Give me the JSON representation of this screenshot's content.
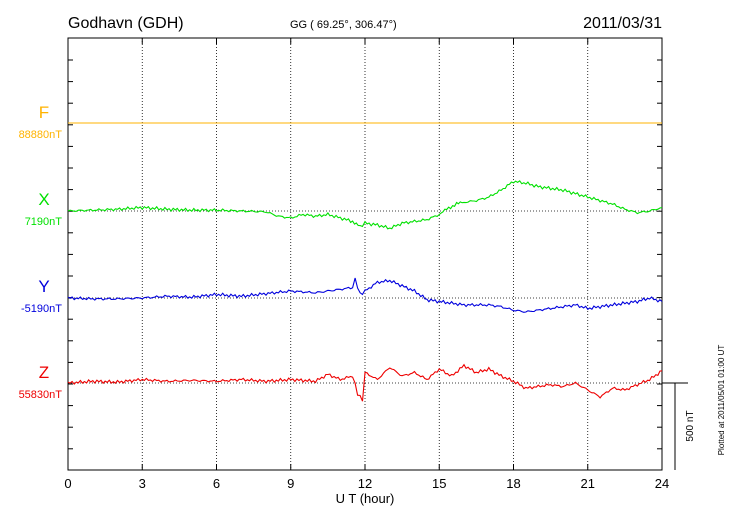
{
  "header": {
    "station": "Godhavn (GDH)",
    "coords": "GG ( 69.25°, 306.47°)",
    "date": "2011/03/31"
  },
  "side_note": "Plotted at 2011/05/01 01:00 UT",
  "scale_label": "500 nT",
  "chart_data": {
    "type": "line",
    "xlabel": "U T (hour)",
    "xlim": [
      0,
      24
    ],
    "xticks": [
      "0",
      "3",
      "6",
      "9",
      "12",
      "15",
      "18",
      "21",
      "24"
    ],
    "scale_bar_nT": 500,
    "colors": {
      "F": "#ffb300",
      "X": "#00e000",
      "Y": "#0000dd",
      "Z": "#ee0000"
    },
    "series": [
      {
        "name": "F",
        "baseline_label": "88880nT",
        "x": [
          0,
          24
        ],
        "y": [
          0,
          0
        ]
      },
      {
        "name": "X",
        "baseline_label": "7190nT",
        "x": [
          0,
          1,
          2,
          3,
          4,
          5,
          6,
          7,
          8,
          8.5,
          9,
          9.5,
          10,
          10.5,
          11,
          11.5,
          11.8,
          12,
          12.5,
          13,
          13.5,
          14,
          14.5,
          15,
          15.3,
          15.7,
          16,
          16.5,
          17,
          17.5,
          18,
          18.5,
          19,
          19.5,
          20,
          20.5,
          21,
          21.5,
          22,
          22.5,
          23,
          23.5,
          24
        ],
        "y": [
          0,
          5,
          10,
          20,
          10,
          5,
          5,
          0,
          -5,
          -30,
          -40,
          -20,
          -30,
          -20,
          -40,
          -60,
          -90,
          -70,
          -80,
          -100,
          -70,
          -60,
          -50,
          -20,
          10,
          40,
          50,
          60,
          80,
          120,
          170,
          160,
          140,
          130,
          120,
          100,
          80,
          60,
          40,
          10,
          -10,
          0,
          20
        ]
      },
      {
        "name": "Y",
        "baseline_label": "-5190nT",
        "x": [
          0,
          1,
          2,
          3,
          4,
          5,
          6,
          7,
          8,
          9,
          10,
          11,
          11.5,
          11.6,
          11.8,
          12,
          12.5,
          13,
          13.5,
          14,
          14.5,
          15,
          15.5,
          16,
          16.5,
          17,
          17.5,
          18,
          18.5,
          19,
          19.5,
          20,
          20.5,
          21,
          21.5,
          22,
          22.5,
          23,
          23.5,
          24
        ],
        "y": [
          0,
          -5,
          -5,
          0,
          10,
          5,
          20,
          10,
          25,
          40,
          30,
          50,
          60,
          110,
          20,
          40,
          90,
          100,
          70,
          40,
          -10,
          -20,
          -30,
          -40,
          -40,
          -40,
          -50,
          -70,
          -80,
          -70,
          -60,
          -50,
          -40,
          -60,
          -50,
          -40,
          -30,
          -20,
          0,
          -20
        ]
      },
      {
        "name": "Z",
        "baseline_label": "55830nT",
        "x": [
          0,
          1,
          2,
          3,
          4,
          5,
          6,
          7,
          8,
          9,
          10,
          10.5,
          11,
          11.5,
          11.7,
          11.9,
          12,
          12.5,
          13,
          13.5,
          14,
          14.5,
          15,
          15.5,
          16,
          16.5,
          17,
          17.5,
          18,
          18.5,
          19,
          19.5,
          20,
          20.5,
          21,
          21.5,
          22,
          22.5,
          23,
          23.5,
          24
        ],
        "y": [
          0,
          10,
          5,
          20,
          10,
          15,
          10,
          20,
          10,
          20,
          10,
          50,
          20,
          40,
          -60,
          -100,
          60,
          20,
          90,
          40,
          60,
          20,
          80,
          40,
          100,
          60,
          80,
          40,
          10,
          -30,
          -20,
          -10,
          -20,
          0,
          -40,
          -80,
          -30,
          -40,
          -10,
          20,
          70
        ]
      }
    ]
  }
}
